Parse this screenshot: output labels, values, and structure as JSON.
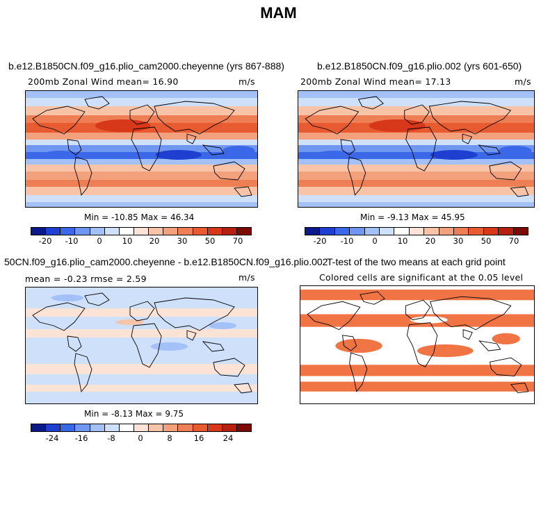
{
  "figure_title": "MAM",
  "chart_data": [
    {
      "type": "heatmap",
      "title": "b.e12.B1850CN.f09_g16.plio_cam2000.cheyenne (yrs 867-888)",
      "left_subtitle": "200mb Zonal Wind  mean=  16.90",
      "units": "m/s",
      "min_max": "Min = -10.85  Max =  46.34",
      "colorbar_ticks": [
        "-20",
        "-10",
        "0",
        "10",
        "20",
        "30",
        "50",
        "70"
      ],
      "colorbar_levels": [
        -25,
        -20,
        -15,
        -10,
        -5,
        0,
        5,
        10,
        15,
        20,
        25,
        30,
        40,
        50,
        60,
        70
      ],
      "mean": 16.9,
      "min": -10.85,
      "max": 46.34
    },
    {
      "type": "heatmap",
      "title": "b.e12.B1850CN.f09_g16.plio.002 (yrs 601-650)",
      "left_subtitle": "200mb Zonal Wind  mean=  17.13",
      "units": "m/s",
      "min_max": "Min = -9.13  Max =  45.95",
      "colorbar_ticks": [
        "-20",
        "-10",
        "0",
        "10",
        "20",
        "30",
        "50",
        "70"
      ],
      "colorbar_levels": [
        -25,
        -20,
        -15,
        -10,
        -5,
        0,
        5,
        10,
        15,
        20,
        25,
        30,
        40,
        50,
        60,
        70
      ],
      "mean": 17.13,
      "min": -9.13,
      "max": 45.95
    },
    {
      "type": "heatmap",
      "title": "50CN.f09_g16.plio_cam2000.cheyenne - b.e12.B1850CN.f09_g16.plio.002",
      "left_subtitle": "mean =   -0.23     rmse =    2.59",
      "units": "m/s",
      "min_max": "Min = -8.13  Max =   9.75",
      "colorbar_ticks": [
        "-24",
        "-16",
        "-8",
        "0",
        "8",
        "16",
        "24"
      ],
      "colorbar_levels": [
        -28,
        -24,
        -20,
        -16,
        -12,
        -8,
        -4,
        0,
        4,
        8,
        12,
        16,
        20,
        24,
        28
      ],
      "mean": -0.23,
      "rmse": 2.59,
      "min": -8.13,
      "max": 9.75
    },
    {
      "type": "heatmap",
      "title": "T-test of the two means at each grid point",
      "subtitle": "Colored cells are significant at the 0.05 level",
      "significance_level": 0.05
    }
  ],
  "colors": {
    "scale": [
      "#0a1a8c",
      "#1f3fd0",
      "#3a68e8",
      "#6f97f2",
      "#a3c0f7",
      "#cfe0fa",
      "#ffffff",
      "#fde3d5",
      "#f8c3a7",
      "#f3a07c",
      "#ee7f55",
      "#e85a30",
      "#d8381a",
      "#b52010",
      "#7a0b06"
    ],
    "significance": "#f07444"
  }
}
